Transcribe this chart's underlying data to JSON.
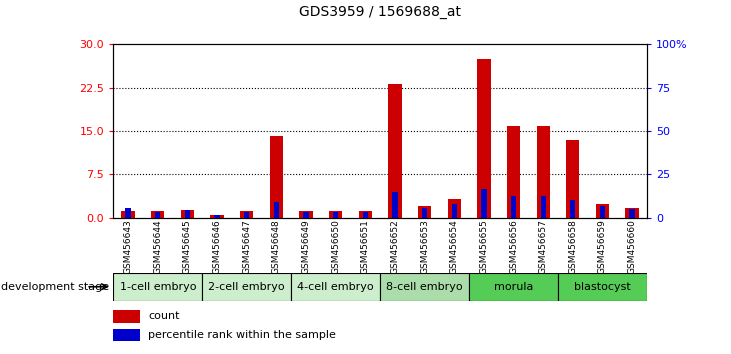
{
  "title": "GDS3959 / 1569688_at",
  "samples": [
    "GSM456643",
    "GSM456644",
    "GSM456645",
    "GSM456646",
    "GSM456647",
    "GSM456648",
    "GSM456649",
    "GSM456650",
    "GSM456651",
    "GSM456652",
    "GSM456653",
    "GSM456654",
    "GSM456655",
    "GSM456656",
    "GSM456657",
    "GSM456658",
    "GSM456659",
    "GSM456660"
  ],
  "count": [
    1.2,
    1.1,
    1.3,
    0.4,
    1.1,
    14.2,
    1.1,
    1.1,
    1.2,
    23.2,
    2.0,
    3.3,
    27.5,
    15.8,
    15.8,
    13.5,
    2.4,
    1.7
  ],
  "percentile": [
    5.5,
    3.5,
    4.5,
    1.5,
    3.5,
    9.0,
    3.5,
    3.5,
    3.5,
    15.0,
    5.5,
    8.0,
    16.5,
    12.5,
    12.5,
    10.0,
    7.0,
    5.0
  ],
  "stages": [
    {
      "name": "1-cell embryo",
      "start": 0,
      "end": 3,
      "color": "#cceecc"
    },
    {
      "name": "2-cell embryo",
      "start": 3,
      "end": 6,
      "color": "#cceecc"
    },
    {
      "name": "4-cell embryo",
      "start": 6,
      "end": 9,
      "color": "#cceecc"
    },
    {
      "name": "8-cell embryo",
      "start": 9,
      "end": 12,
      "color": "#aaddaa"
    },
    {
      "name": "morula",
      "start": 12,
      "end": 15,
      "color": "#66dd66"
    },
    {
      "name": "blastocyst",
      "start": 15,
      "end": 18,
      "color": "#66dd66"
    }
  ],
  "ylim_left": [
    0,
    30
  ],
  "ylim_right": [
    0,
    100
  ],
  "yticks_left": [
    0,
    7.5,
    15,
    22.5,
    30
  ],
  "yticks_right": [
    0,
    25,
    50,
    75,
    100
  ],
  "bar_color_red": "#cc0000",
  "bar_color_blue": "#0000cc",
  "background_color": "#ffffff",
  "development_stage_label": "development stage",
  "sample_box_color": "#c8c8c8",
  "legend_count": "count",
  "legend_pct": "percentile rank within the sample"
}
